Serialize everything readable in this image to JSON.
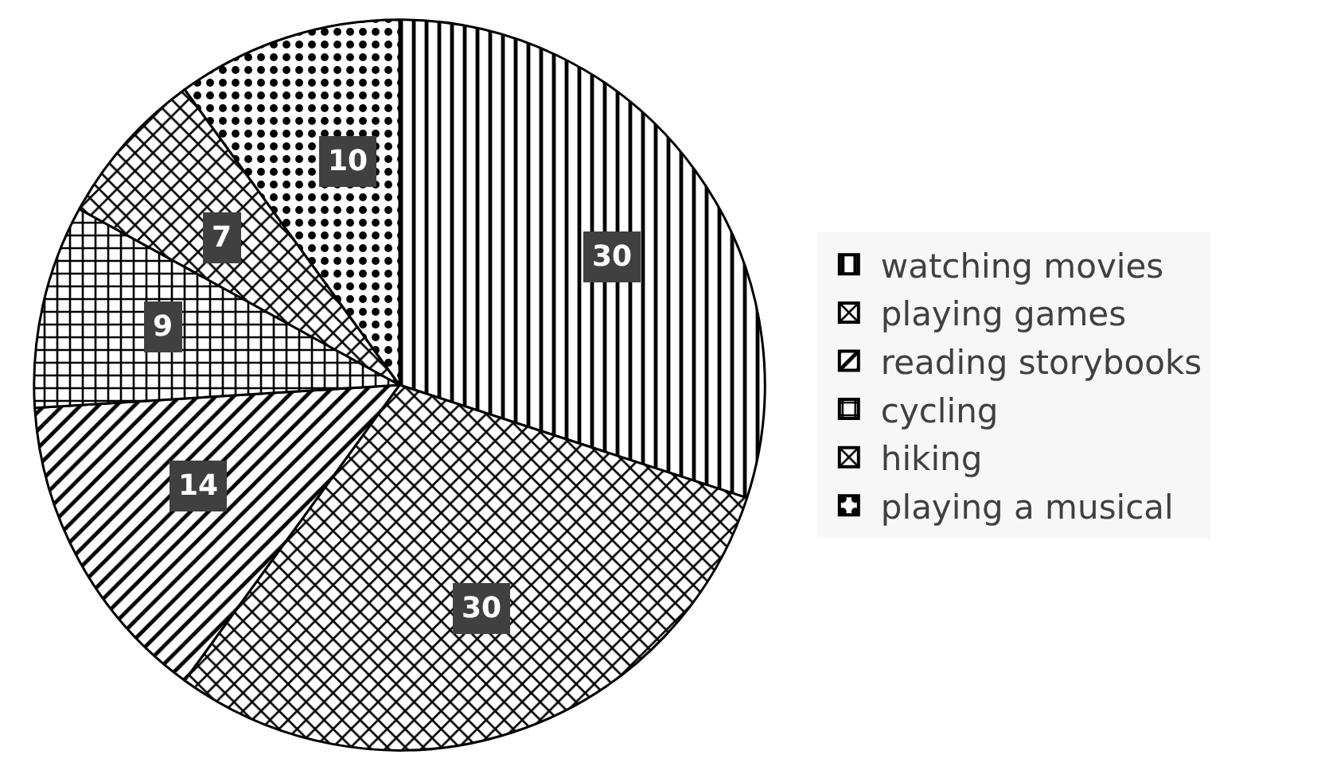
{
  "chart_data": {
    "type": "pie",
    "categories": [
      "watching movies",
      "playing games",
      "reading storybooks",
      "cycling",
      "hiking",
      "playing a musical"
    ],
    "values": [
      30,
      30,
      14,
      9,
      7,
      10
    ],
    "data_labels": true,
    "legend": "right"
  }
}
